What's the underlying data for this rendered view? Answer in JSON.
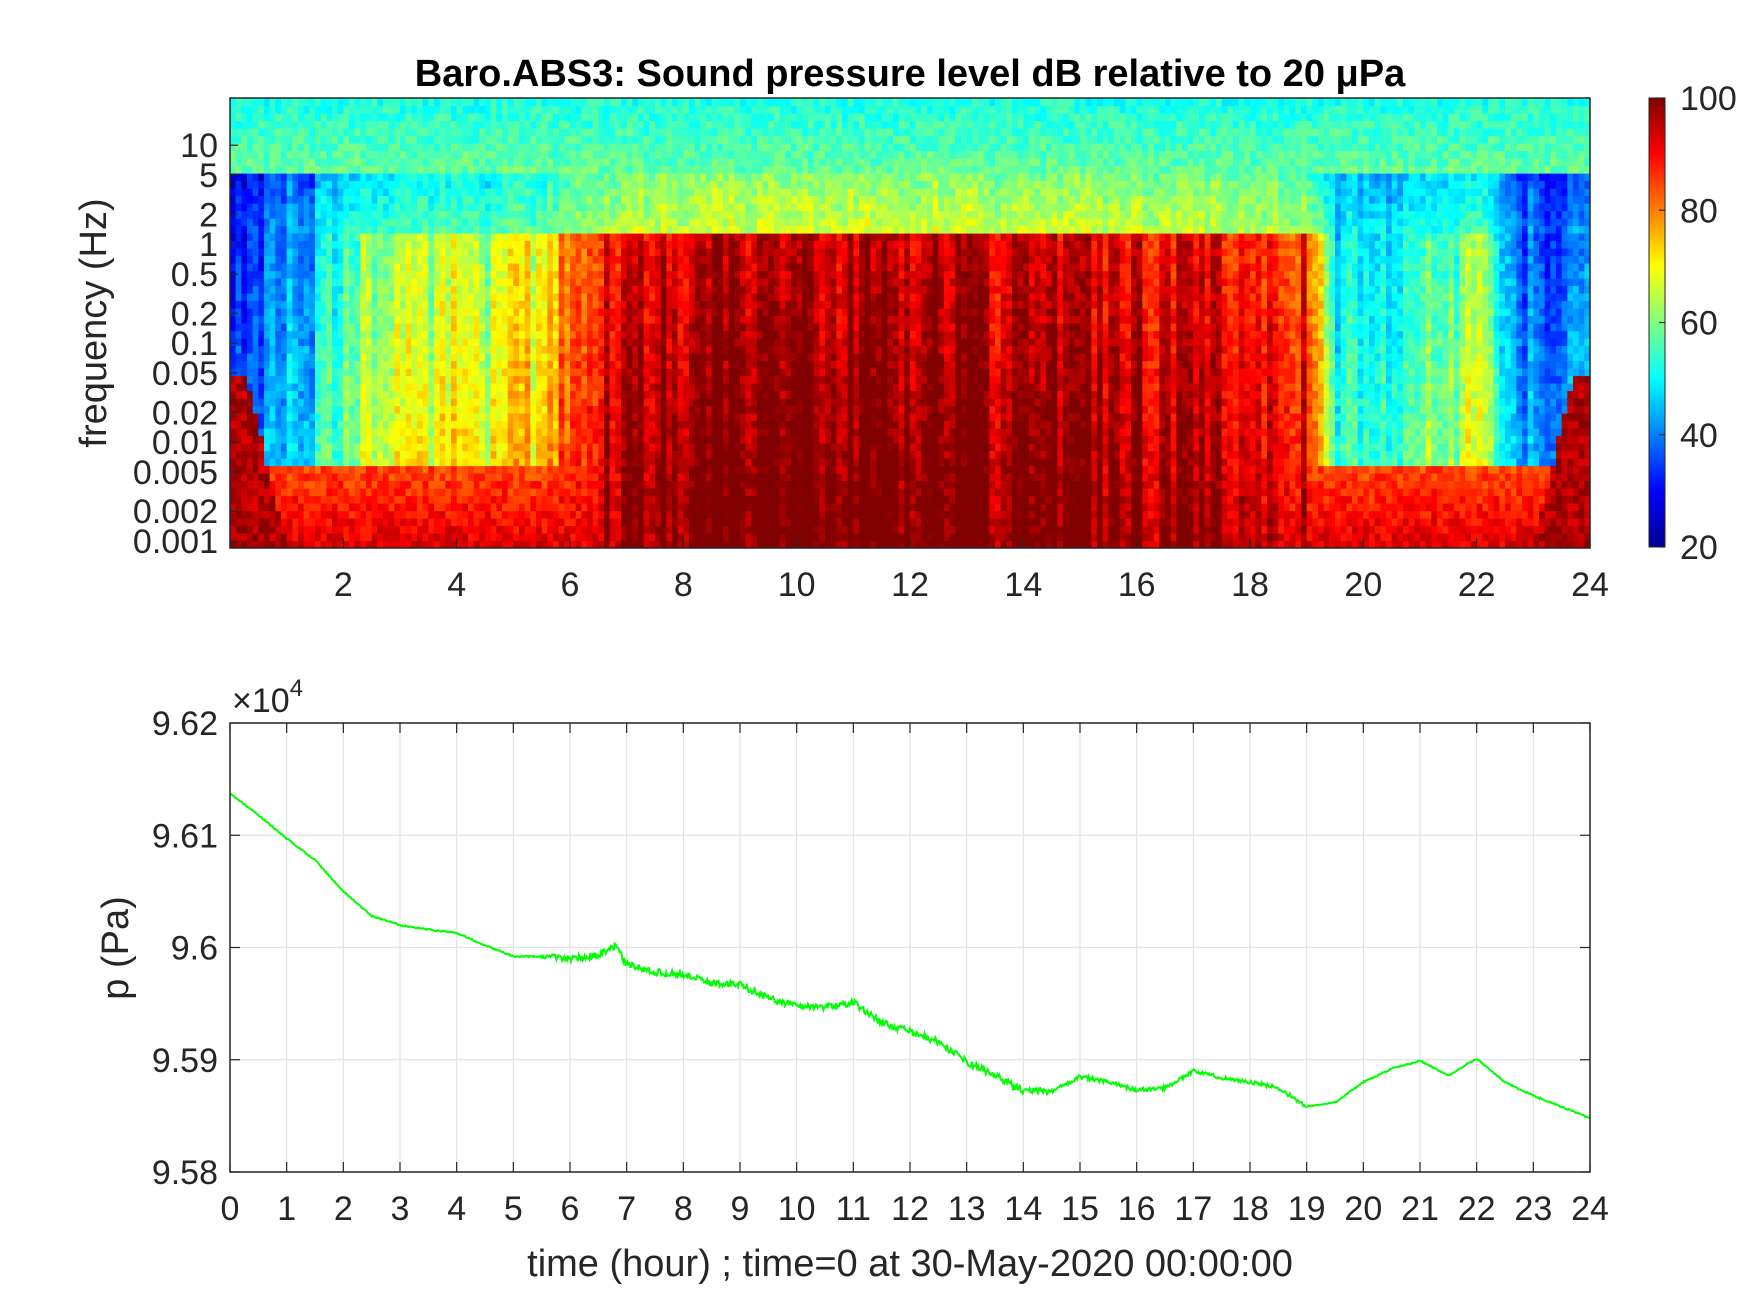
{
  "figure": {
    "spectrogram_title": "Baro.ABS3: Sound pressure level dB relative to 20 μPa",
    "pressure_multiplier": "×10",
    "pressure_multiplier_exp": "4"
  },
  "chart_data": [
    {
      "type": "heatmap",
      "title": "Baro.ABS3: Sound pressure level dB relative to 20 μPa",
      "ylabel": "frequency (Hz)",
      "xlabel": "",
      "x_ticks": [
        "2",
        "4",
        "6",
        "8",
        "10",
        "12",
        "14",
        "16",
        "18",
        "20",
        "22",
        "24"
      ],
      "x_tick_values": [
        2,
        4,
        6,
        8,
        10,
        12,
        14,
        16,
        18,
        20,
        22,
        24
      ],
      "xlim": [
        0,
        24
      ],
      "y_scale": "log",
      "y_ticks": [
        "10",
        "5",
        "2",
        "1",
        "0.5",
        "0.2",
        "0.1",
        "0.05",
        "0.02",
        "0.01",
        "0.005",
        "0.002",
        "0.001"
      ],
      "y_tick_values": [
        10,
        5,
        2,
        1,
        0.5,
        0.2,
        0.1,
        0.05,
        0.02,
        0.01,
        0.005,
        0.002,
        0.001
      ],
      "ylim": [
        0.00085,
        30
      ],
      "colorbar": {
        "ticks": [
          "100",
          "80",
          "60",
          "40",
          "20"
        ],
        "values": [
          100,
          80,
          60,
          40,
          20
        ],
        "range": [
          20,
          100
        ],
        "colormap": "jet"
      },
      "activity_profile": {
        "hours": [
          0,
          0.5,
          1,
          1.5,
          2,
          2.5,
          3,
          3.5,
          4,
          4.5,
          5,
          5.5,
          6,
          6.5,
          7,
          7.5,
          8,
          8.5,
          9,
          9.5,
          10,
          10.5,
          11,
          11.5,
          12,
          12.5,
          13,
          13.5,
          14,
          14.5,
          15,
          15.5,
          16,
          16.5,
          17,
          17.5,
          18,
          18.5,
          19,
          19.5,
          20,
          20.5,
          21,
          21.5,
          22,
          22.5,
          23,
          23.5,
          24
        ],
        "level_db": [
          34,
          34,
          40,
          44,
          56,
          60,
          64,
          60,
          68,
          60,
          74,
          66,
          82,
          88,
          90,
          94,
          92,
          94,
          96,
          94,
          96,
          94,
          95,
          96,
          94,
          96,
          95,
          92,
          94,
          92,
          93,
          90,
          92,
          88,
          90,
          88,
          86,
          88,
          86,
          50,
          48,
          46,
          58,
          54,
          62,
          44,
          36,
          36,
          36
        ]
      }
    },
    {
      "type": "line",
      "xlabel": "time (hour) ; time=0 at 30-May-2020 00:00:00",
      "ylabel": "p (Pa)",
      "x_ticks": [
        "0",
        "1",
        "2",
        "3",
        "4",
        "5",
        "6",
        "7",
        "8",
        "9",
        "10",
        "11",
        "12",
        "13",
        "14",
        "15",
        "16",
        "17",
        "18",
        "19",
        "20",
        "21",
        "22",
        "23",
        "24"
      ],
      "xlim": [
        0,
        24
      ],
      "y_ticks": [
        "9.62",
        "9.61",
        "9.6",
        "9.59",
        "9.58"
      ],
      "ylim": [
        95800,
        96200
      ],
      "y_multiplier": "×10^4",
      "grid": true,
      "color": "#00ff00",
      "series": [
        {
          "x": [
            0,
            0.5,
            1,
            1.5,
            2,
            2.5,
            3,
            3.5,
            4,
            4.5,
            5,
            5.5,
            6,
            6.5,
            6.8,
            7,
            7.5,
            8,
            8.5,
            9,
            9.5,
            10,
            10.5,
            11,
            11.5,
            12,
            12.5,
            13,
            13.5,
            14,
            14.5,
            15,
            15.5,
            16,
            16.5,
            17,
            17.5,
            18,
            18.5,
            19,
            19.5,
            20,
            20.5,
            21,
            21.5,
            22,
            22.5,
            23,
            23.5,
            24
          ],
          "y": [
            96137,
            96118,
            96097,
            96078,
            96050,
            96028,
            96020,
            96016,
            96013,
            96002,
            95992,
            95992,
            95990,
            95993,
            96001,
            95985,
            95978,
            95976,
            95968,
            95967,
            95955,
            95948,
            95947,
            95951,
            95933,
            95925,
            95916,
            95898,
            95886,
            95872,
            95872,
            95885,
            95880,
            95873,
            95875,
            95890,
            95884,
            95880,
            95875,
            95858,
            95862,
            95880,
            95892,
            95899,
            95886,
            95901,
            95880,
            95868,
            95858,
            95848
          ]
        }
      ]
    }
  ]
}
